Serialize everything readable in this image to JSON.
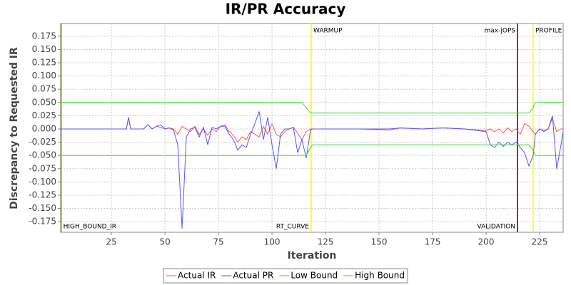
{
  "chart_data": {
    "type": "line",
    "title": "IR/PR Accuracy",
    "x_label": "Iteration",
    "y_label": "Discrepancy to Requested IR",
    "x": [
      1,
      30,
      32,
      33,
      34,
      36,
      40,
      42,
      44,
      46,
      48,
      50,
      52,
      54,
      56,
      58,
      60,
      62,
      64,
      66,
      68,
      70,
      72,
      74,
      76,
      78,
      80,
      82,
      84,
      86,
      88,
      90,
      92,
      94,
      96,
      98,
      100,
      102,
      104,
      106,
      108,
      110,
      112,
      114,
      116,
      118,
      119,
      125,
      140,
      155,
      160,
      170,
      180,
      190,
      200,
      202,
      204,
      206,
      208,
      210,
      212,
      214,
      216,
      218,
      220,
      222,
      223,
      225,
      227,
      229,
      231,
      233,
      235,
      236
    ],
    "series": [
      {
        "name": "Actual IR",
        "color": "#ff5555",
        "values": [
          0,
          0,
          0,
          0.022,
          0,
          0,
          0,
          0.008,
          0,
          0.005,
          0.003,
          0,
          0.002,
          0,
          -0.01,
          0.005,
          0,
          -0.005,
          0.005,
          -0.01,
          0,
          -0.012,
          0,
          -0.005,
          0.005,
          0.008,
          -0.005,
          -0.012,
          -0.025,
          -0.015,
          -0.02,
          -0.005,
          -0.01,
          -0.015,
          0.005,
          -0.01,
          0.01,
          -0.01,
          -0.015,
          -0.005,
          0,
          0.003,
          -0.008,
          -0.02,
          -0.005,
          0,
          0,
          0,
          0,
          -0.002,
          0.002,
          0,
          0.002,
          0,
          -0.003,
          0,
          -0.005,
          0,
          -0.008,
          0.002,
          -0.005,
          0,
          -0.01,
          0.01,
          0.005,
          -0.005,
          -0.01,
          0,
          -0.003,
          0,
          0.02,
          -0.005,
          0,
          0
        ]
      },
      {
        "name": "Actual PR",
        "color": "#5555ff",
        "values": [
          0,
          0,
          0,
          0.022,
          0,
          0,
          0,
          0.008,
          0,
          0.005,
          0.008,
          0,
          0.002,
          -0.002,
          -0.03,
          -0.188,
          -0.015,
          0,
          0.003,
          -0.015,
          0.003,
          -0.03,
          0.003,
          0,
          0.005,
          0.005,
          -0.01,
          -0.02,
          -0.04,
          -0.03,
          -0.035,
          -0.01,
          0.01,
          0.033,
          -0.02,
          0.022,
          -0.03,
          -0.075,
          -0.01,
          0,
          0,
          0.003,
          -0.045,
          -0.02,
          -0.055,
          -0.002,
          0,
          0,
          0,
          0,
          0.002,
          0,
          0.002,
          0,
          -0.005,
          -0.03,
          -0.035,
          -0.025,
          -0.033,
          -0.025,
          -0.03,
          -0.025,
          -0.035,
          -0.045,
          -0.07,
          -0.05,
          -0.01,
          0,
          -0.005,
          0,
          0.025,
          -0.075,
          -0.03,
          -0.005
        ]
      },
      {
        "name": "Low Bound",
        "color": "#33dd33",
        "values": [
          -0.05,
          -0.05,
          -0.05,
          -0.05,
          -0.05,
          -0.05,
          -0.05,
          -0.05,
          -0.05,
          -0.05,
          -0.05,
          -0.05,
          -0.05,
          -0.05,
          -0.05,
          -0.05,
          -0.05,
          -0.05,
          -0.05,
          -0.05,
          -0.05,
          -0.05,
          -0.05,
          -0.05,
          -0.05,
          -0.05,
          -0.05,
          -0.05,
          -0.05,
          -0.05,
          -0.05,
          -0.05,
          -0.05,
          -0.05,
          -0.05,
          -0.05,
          -0.05,
          -0.05,
          -0.05,
          -0.05,
          -0.05,
          -0.05,
          -0.05,
          -0.05,
          -0.05,
          -0.035,
          -0.03,
          -0.03,
          -0.03,
          -0.03,
          -0.03,
          -0.03,
          -0.03,
          -0.03,
          -0.03,
          -0.03,
          -0.03,
          -0.03,
          -0.03,
          -0.03,
          -0.03,
          -0.03,
          -0.03,
          -0.03,
          -0.03,
          -0.04,
          -0.05,
          -0.05,
          -0.05,
          -0.05,
          -0.05,
          -0.05,
          -0.05,
          -0.05
        ]
      },
      {
        "name": "High Bound",
        "color": "#33dd33",
        "values": [
          0.05,
          0.05,
          0.05,
          0.05,
          0.05,
          0.05,
          0.05,
          0.05,
          0.05,
          0.05,
          0.05,
          0.05,
          0.05,
          0.05,
          0.05,
          0.05,
          0.05,
          0.05,
          0.05,
          0.05,
          0.05,
          0.05,
          0.05,
          0.05,
          0.05,
          0.05,
          0.05,
          0.05,
          0.05,
          0.05,
          0.05,
          0.05,
          0.05,
          0.05,
          0.05,
          0.05,
          0.05,
          0.05,
          0.05,
          0.05,
          0.05,
          0.05,
          0.05,
          0.05,
          0.04,
          0.03,
          0.03,
          0.03,
          0.03,
          0.03,
          0.03,
          0.03,
          0.03,
          0.03,
          0.03,
          0.03,
          0.03,
          0.03,
          0.03,
          0.03,
          0.03,
          0.03,
          0.03,
          0.03,
          0.03,
          0.04,
          0.05,
          0.05,
          0.05,
          0.05,
          0.05,
          0.05,
          0.05,
          0.05
        ]
      }
    ],
    "markers": [
      {
        "value": 1.5,
        "label": "HIGH_BOUND_IR",
        "color": "#808000",
        "position": "bottom-right"
      },
      {
        "value": 118.3,
        "label": "RT_CURVE",
        "color": "#ffff00",
        "position": "bottom-left"
      },
      {
        "value": 118.3,
        "label": "WARMUP",
        "color": "#ffff00",
        "position": "top-right"
      },
      {
        "value": 214.7,
        "label": "VALIDATION",
        "color": "#b00000",
        "position": "bottom-left"
      },
      {
        "value": 214.7,
        "label": "max-jOPS",
        "color": "#b00000",
        "position": "top-left"
      },
      {
        "value": 222,
        "label": "PROFILE",
        "color": "#ffff00",
        "position": "top-right"
      }
    ],
    "xlim": [
      1.3,
      236
    ],
    "ylim": [
      -0.195,
      0.199
    ],
    "xticks": [
      25,
      50,
      75,
      100,
      125,
      150,
      175,
      200,
      225
    ],
    "yticks": [
      0.175,
      {
        "value": 0.15,
        "label": "0.150"
      },
      0.125,
      {
        "value": 0.1,
        "label": "0.100"
      },
      0.075,
      {
        "value": 0.05,
        "label": "0.050"
      },
      0.025,
      {
        "value": 0,
        "label": "0.000"
      },
      -0.025,
      {
        "value": -0.05,
        "label": "-0.050"
      },
      -0.075,
      {
        "value": -0.1,
        "label": "-0.100"
      },
      -0.125,
      {
        "value": -0.15,
        "label": "-0.150"
      },
      -0.175
    ],
    "grid": true,
    "legend": "bottom"
  }
}
